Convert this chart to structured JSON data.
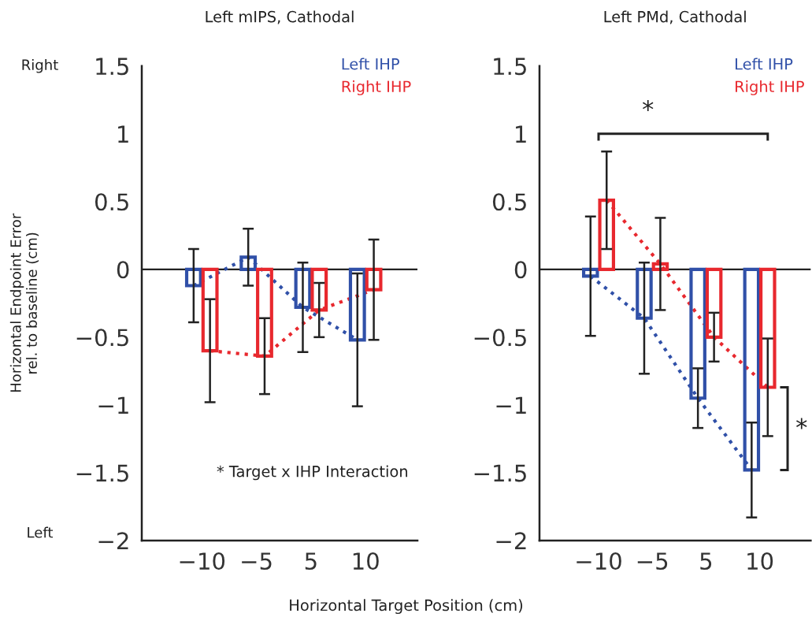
{
  "chart_data": [
    {
      "type": "bar",
      "title": "Left mIPS, Cathodal",
      "ylabel": "Horizontal Endpoint Error\nrel. to baseline (cm)",
      "xlabel": "Horizontal Target Position (cm)",
      "categories": [
        "−10",
        "−5",
        "5",
        "10"
      ],
      "series": [
        {
          "name": "Left IHP",
          "color": "#3050a8",
          "values": [
            -0.12,
            0.09,
            -0.28,
            -0.52
          ],
          "errors": [
            0.27,
            0.21,
            0.33,
            0.49
          ]
        },
        {
          "name": "Right IHP",
          "color": "#e8282e",
          "values": [
            -0.6,
            -0.64,
            -0.3,
            -0.15
          ],
          "errors": [
            0.38,
            0.28,
            0.2,
            0.37
          ]
        }
      ],
      "ylim": [
        -2,
        1.5
      ],
      "yticks": [
        {
          "value": -2,
          "label": "−2"
        },
        {
          "value": -1.5,
          "label": "−1.5"
        },
        {
          "value": -1,
          "label": "−1"
        },
        {
          "value": -0.5,
          "label": "−0.5"
        },
        0,
        0.5,
        1,
        1.5
      ],
      "ref_lines": [
        {
          "axis": "y",
          "value": 0,
          "color": "#222222"
        }
      ],
      "annotations": [
        "Right",
        "Left",
        "* Target x IHP Interaction"
      ],
      "line_style": "dotted",
      "legend": "top right",
      "grid": false
    },
    {
      "type": "bar",
      "title": "Left PMd, Cathodal",
      "categories": [
        "−10",
        "−5",
        "5",
        "10"
      ],
      "series": [
        {
          "name": "Left IHP",
          "color": "#3050a8",
          "values": [
            -0.05,
            -0.36,
            -0.95,
            -1.48
          ],
          "errors": [
            0.44,
            0.41,
            0.22,
            0.35
          ]
        },
        {
          "name": "Right IHP",
          "color": "#e8282e",
          "values": [
            0.51,
            0.04,
            -0.5,
            -0.87
          ],
          "errors": [
            0.36,
            0.34,
            0.18,
            0.36
          ]
        }
      ],
      "ylim": [
        -2,
        1.5
      ],
      "yticks": [
        {
          "value": -2,
          "label": "−2"
        },
        {
          "value": -1.5,
          "label": "−1.5"
        },
        {
          "value": -1,
          "label": "−1"
        },
        {
          "value": -0.5,
          "label": "−0.5"
        },
        0,
        0.5,
        1,
        1.5
      ],
      "ref_lines": [
        {
          "axis": "y",
          "value": 0,
          "color": "#222222"
        }
      ],
      "annotations": [
        "*",
        "*"
      ],
      "line_style": "dotted",
      "legend": "top right",
      "grid": false
    }
  ]
}
